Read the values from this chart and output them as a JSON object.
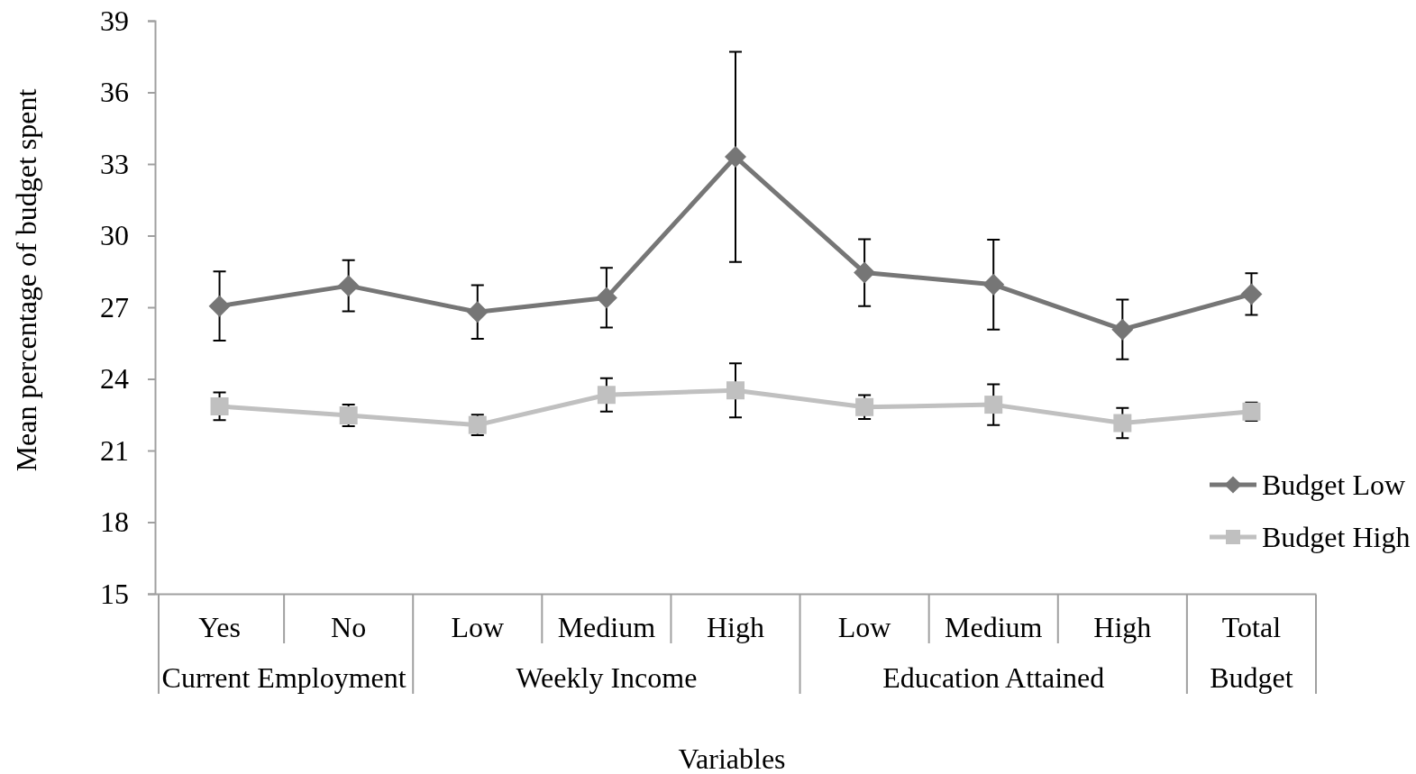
{
  "chart_data": {
    "type": "line",
    "xlabel": "Variables",
    "ylabel": "Mean percentage of budget spent",
    "categories": [
      "Yes",
      "No",
      "Low",
      "Medium",
      "High",
      "Low",
      "Medium",
      "High",
      "Total"
    ],
    "series": [
      {
        "name": "Budget Low",
        "color": "#767676",
        "marker": "diamond",
        "values": [
          27.05,
          27.9,
          26.8,
          27.4,
          33.3,
          28.45,
          27.95,
          26.07,
          27.55
        ],
        "errors": [
          1.45,
          1.07,
          1.12,
          1.25,
          4.4,
          1.4,
          1.88,
          1.25,
          0.87
        ]
      },
      {
        "name": "Budget High",
        "color": "#c0c0c0",
        "marker": "square",
        "values": [
          22.85,
          22.47,
          22.07,
          23.33,
          23.52,
          22.82,
          22.92,
          22.15,
          22.63
        ],
        "errors": [
          0.58,
          0.45,
          0.43,
          0.7,
          1.13,
          0.5,
          0.85,
          0.63,
          0.38
        ]
      }
    ],
    "ylim": [
      15,
      39
    ],
    "yticks": [
      15,
      18,
      21,
      24,
      27,
      30,
      33,
      36,
      39
    ],
    "legend": "right",
    "line_style": "solid",
    "annotations": [
      "Current Employment",
      "Weekly Income",
      "Education Attained",
      "Budget"
    ]
  }
}
